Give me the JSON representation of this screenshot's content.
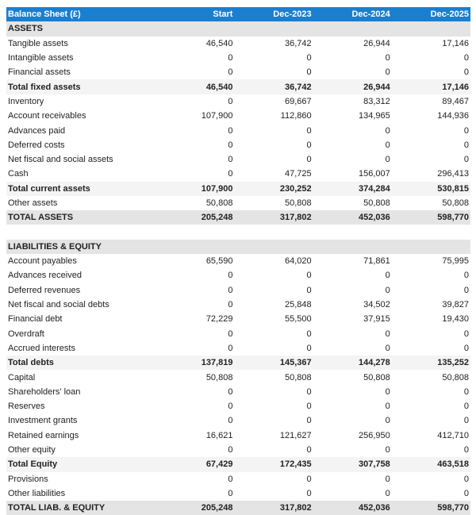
{
  "header": {
    "title": "Balance Sheet (£)",
    "columns": [
      "Start",
      "Dec-2023",
      "Dec-2024",
      "Dec-2025"
    ]
  },
  "colors": {
    "header_bg": "#1b7fd0",
    "section_bg": "#e4e4e4",
    "subtotal_bg": "#f4f4f4"
  },
  "rows": [
    {
      "type": "section",
      "label": "ASSETS",
      "values": []
    },
    {
      "type": "row",
      "label": "Tangible assets",
      "values": [
        "46,540",
        "36,742",
        "26,944",
        "17,146"
      ]
    },
    {
      "type": "row",
      "label": "Intangible assets",
      "values": [
        "0",
        "0",
        "0",
        "0"
      ]
    },
    {
      "type": "row",
      "label": "Financial assets",
      "values": [
        "0",
        "0",
        "0",
        "0"
      ]
    },
    {
      "type": "subtotal",
      "label": "Total fixed assets",
      "values": [
        "46,540",
        "36,742",
        "26,944",
        "17,146"
      ]
    },
    {
      "type": "row",
      "label": "Inventory",
      "values": [
        "0",
        "69,667",
        "83,312",
        "89,467"
      ]
    },
    {
      "type": "row",
      "label": "Account receivables",
      "values": [
        "107,900",
        "112,860",
        "134,965",
        "144,936"
      ]
    },
    {
      "type": "row",
      "label": "Advances paid",
      "values": [
        "0",
        "0",
        "0",
        "0"
      ]
    },
    {
      "type": "row",
      "label": "Deferred costs",
      "values": [
        "0",
        "0",
        "0",
        "0"
      ]
    },
    {
      "type": "row",
      "label": "Net fiscal and social assets",
      "values": [
        "0",
        "0",
        "0",
        "0"
      ]
    },
    {
      "type": "row",
      "label": "Cash",
      "values": [
        "0",
        "47,725",
        "156,007",
        "296,413"
      ]
    },
    {
      "type": "subtotal",
      "label": "Total current assets",
      "values": [
        "107,900",
        "230,252",
        "374,284",
        "530,815"
      ]
    },
    {
      "type": "row",
      "label": "Other assets",
      "values": [
        "50,808",
        "50,808",
        "50,808",
        "50,808"
      ]
    },
    {
      "type": "grandtotal",
      "label": "TOTAL ASSETS",
      "values": [
        "205,248",
        "317,802",
        "452,036",
        "598,770"
      ]
    },
    {
      "type": "spacer",
      "label": "",
      "values": []
    },
    {
      "type": "section",
      "label": "LIABILITIES & EQUITY",
      "values": []
    },
    {
      "type": "row",
      "label": "Account payables",
      "values": [
        "65,590",
        "64,020",
        "71,861",
        "75,995"
      ]
    },
    {
      "type": "row",
      "label": "Advances received",
      "values": [
        "0",
        "0",
        "0",
        "0"
      ]
    },
    {
      "type": "row",
      "label": "Deferred revenues",
      "values": [
        "0",
        "0",
        "0",
        "0"
      ]
    },
    {
      "type": "row",
      "label": "Net fiscal and social debts",
      "values": [
        "0",
        "25,848",
        "34,502",
        "39,827"
      ]
    },
    {
      "type": "row",
      "label": "Financial debt",
      "values": [
        "72,229",
        "55,500",
        "37,915",
        "19,430"
      ]
    },
    {
      "type": "row",
      "label": "Overdraft",
      "values": [
        "0",
        "0",
        "0",
        "0"
      ]
    },
    {
      "type": "row",
      "label": "Accrued interests",
      "values": [
        "0",
        "0",
        "0",
        "0"
      ]
    },
    {
      "type": "subtotal",
      "label": "Total debts",
      "values": [
        "137,819",
        "145,367",
        "144,278",
        "135,252"
      ]
    },
    {
      "type": "row",
      "label": "Capital",
      "values": [
        "50,808",
        "50,808",
        "50,808",
        "50,808"
      ]
    },
    {
      "type": "row",
      "label": "Shareholders' loan",
      "values": [
        "0",
        "0",
        "0",
        "0"
      ]
    },
    {
      "type": "row",
      "label": "Reserves",
      "values": [
        "0",
        "0",
        "0",
        "0"
      ]
    },
    {
      "type": "row",
      "label": "Investment grants",
      "values": [
        "0",
        "0",
        "0",
        "0"
      ]
    },
    {
      "type": "row",
      "label": "Retained earnings",
      "values": [
        "16,621",
        "121,627",
        "256,950",
        "412,710"
      ]
    },
    {
      "type": "row",
      "label": "Other equity",
      "values": [
        "0",
        "0",
        "0",
        "0"
      ]
    },
    {
      "type": "subtotal",
      "label": "Total Equity",
      "values": [
        "67,429",
        "172,435",
        "307,758",
        "463,518"
      ]
    },
    {
      "type": "row",
      "label": "Provisions",
      "values": [
        "0",
        "0",
        "0",
        "0"
      ]
    },
    {
      "type": "row",
      "label": "Other liabilities",
      "values": [
        "0",
        "0",
        "0",
        "0"
      ]
    },
    {
      "type": "grandtotal",
      "label": "TOTAL LIAB. & EQUITY",
      "values": [
        "205,248",
        "317,802",
        "452,036",
        "598,770"
      ]
    }
  ]
}
